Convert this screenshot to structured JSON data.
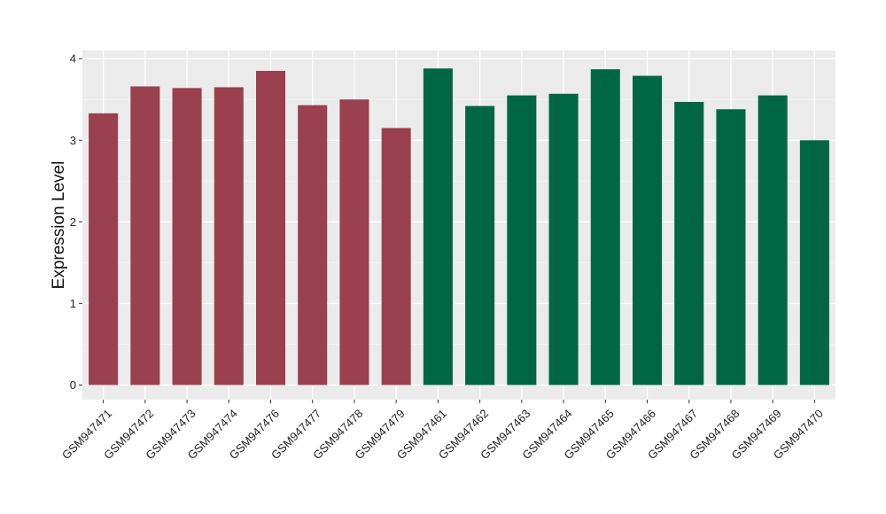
{
  "chart_data": {
    "type": "bar",
    "ylabel": "Expression Level",
    "xlabel": "",
    "ylim": [
      -0.18,
      4.1
    ],
    "yticks": [
      0,
      1,
      2,
      3,
      4
    ],
    "grid": true,
    "panel_background": "#ebebeb",
    "categories": [
      "GSM947471",
      "GSM947472",
      "GSM947473",
      "GSM947474",
      "GSM947476",
      "GSM947477",
      "GSM947478",
      "GSM947479",
      "GSM947461",
      "GSM947462",
      "GSM947463",
      "GSM947464",
      "GSM947465",
      "GSM947466",
      "GSM947467",
      "GSM947468",
      "GSM947469",
      "GSM947470"
    ],
    "values": [
      3.33,
      3.66,
      3.64,
      3.65,
      3.85,
      3.43,
      3.5,
      3.15,
      3.88,
      3.42,
      3.55,
      3.57,
      3.87,
      3.79,
      3.47,
      3.38,
      3.55,
      3.0
    ],
    "colors": [
      "#9a404e",
      "#9a404e",
      "#9a404e",
      "#9a404e",
      "#9a404e",
      "#9a404e",
      "#9a404e",
      "#9a404e",
      "#006644",
      "#006644",
      "#006644",
      "#006644",
      "#006644",
      "#006644",
      "#006644",
      "#006644",
      "#006644",
      "#006644"
    ]
  }
}
